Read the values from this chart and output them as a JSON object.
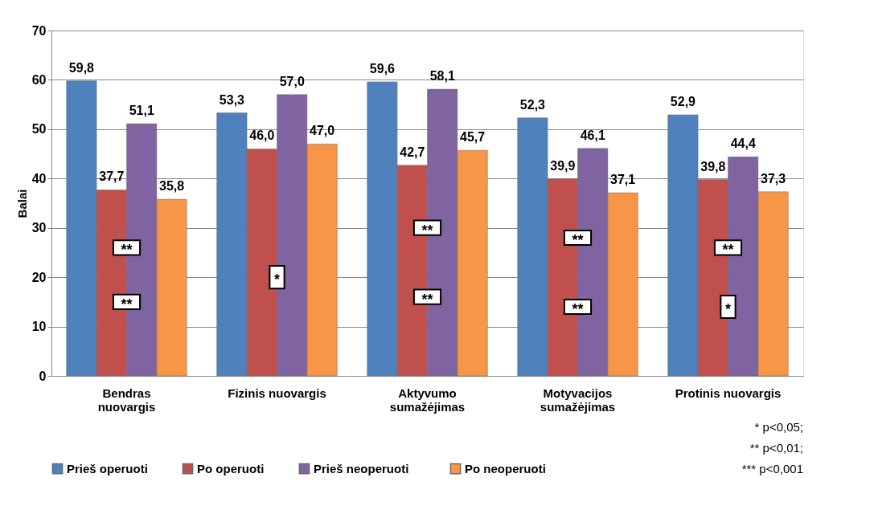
{
  "chart_data": {
    "type": "bar",
    "ylabel": "Balai",
    "categories": [
      "Bendras\nnuovargis",
      "Fizinis nuovargis",
      "Aktyvumo\nsumažėjimas",
      "Motyvacijos\nsumažėjimas",
      "Protinis nuovargis"
    ],
    "series": [
      {
        "name": "Prieš operuoti",
        "color": "#4f81bd",
        "values": [
          59.8,
          53.3,
          59.6,
          52.3,
          52.9
        ],
        "value_labels": [
          "59,8",
          "53,3",
          "59,6",
          "52,3",
          "52,9"
        ]
      },
      {
        "name": "Po operuoti",
        "color": "#c0504d",
        "values": [
          37.7,
          46.0,
          42.7,
          39.9,
          39.8
        ],
        "value_labels": [
          "37,7",
          "46,0",
          "42,7",
          "39,9",
          "39,8"
        ]
      },
      {
        "name": "Prieš   neoperuoti",
        "color": "#8064a2",
        "values": [
          51.1,
          57.0,
          58.1,
          46.1,
          44.4
        ],
        "value_labels": [
          "51,1",
          "57,0",
          "58,1",
          "46,1",
          "44,4"
        ]
      },
      {
        "name": "Po   neoperuoti",
        "color": "#f79646",
        "values": [
          35.8,
          47.0,
          45.7,
          37.1,
          37.3
        ],
        "value_labels": [
          "35,8",
          "47,0",
          "45,7",
          "37,1",
          "37,3"
        ]
      }
    ],
    "ylim": [
      0,
      70
    ],
    "yticks": [
      0,
      10,
      20,
      30,
      40,
      50,
      60,
      70
    ],
    "grid": "y",
    "legend": "bottom",
    "annotations": [
      {
        "text": "**",
        "x": "Bendras\nnuovargis",
        "y": 26
      },
      {
        "text": "**",
        "x": "Bendras\nnuovargis",
        "y": 15
      },
      {
        "text": "*",
        "x": "Fizinis nuovargis",
        "y": 20
      },
      {
        "text": "**",
        "x": "Aktyvumo\nsumažėjimas",
        "y": 30
      },
      {
        "text": "**",
        "x": "Aktyvumo\nsumažėjimas",
        "y": 16
      },
      {
        "text": "**",
        "x": "Motyvacijos\nsumažėjimas",
        "y": 28
      },
      {
        "text": "**",
        "x": "Motyvacijos\nsumažėjimas",
        "y": 14
      },
      {
        "text": "**",
        "x": "Protinis nuovargis",
        "y": 26
      },
      {
        "text": "*",
        "x": "Protinis nuovargis",
        "y": 14
      },
      "* p<0,05;",
      "** p<0,01;",
      "*** p<0,001"
    ]
  }
}
